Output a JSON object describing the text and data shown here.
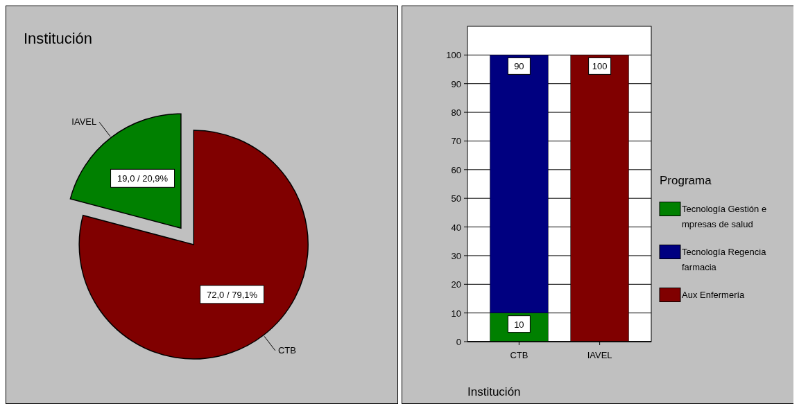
{
  "chart_data": [
    {
      "type": "pie",
      "title": "Institución",
      "categories": [
        "IAVEL",
        "CTB"
      ],
      "values": [
        19,
        72
      ],
      "colors": [
        "#008000",
        "#800000"
      ],
      "value_labels": [
        "19,0 / 20,9%",
        "72,0 / 79,1%"
      ]
    },
    {
      "type": "bar",
      "stacked": true,
      "categories": [
        "CTB",
        "IAVEL"
      ],
      "xlabel": "Institución",
      "legend_title": "Programa",
      "legend": "right",
      "grid": "y",
      "ylim": [
        0,
        110
      ],
      "yticks": [
        0,
        10,
        20,
        30,
        40,
        50,
        60,
        70,
        80,
        90,
        100
      ],
      "series": [
        {
          "name": "Tecnología Gestión e mpresas de salud",
          "color": "#008000",
          "values": [
            10,
            0
          ],
          "value_labels": [
            "10",
            null
          ]
        },
        {
          "name": "Tecnología Regencia farmacia",
          "color": "#000080",
          "values": [
            90,
            0
          ],
          "value_labels": [
            "90",
            null
          ]
        },
        {
          "name": "Aux Enfermería",
          "color": "#800000",
          "values": [
            0,
            100
          ],
          "value_labels": [
            null,
            "100"
          ]
        }
      ]
    }
  ]
}
